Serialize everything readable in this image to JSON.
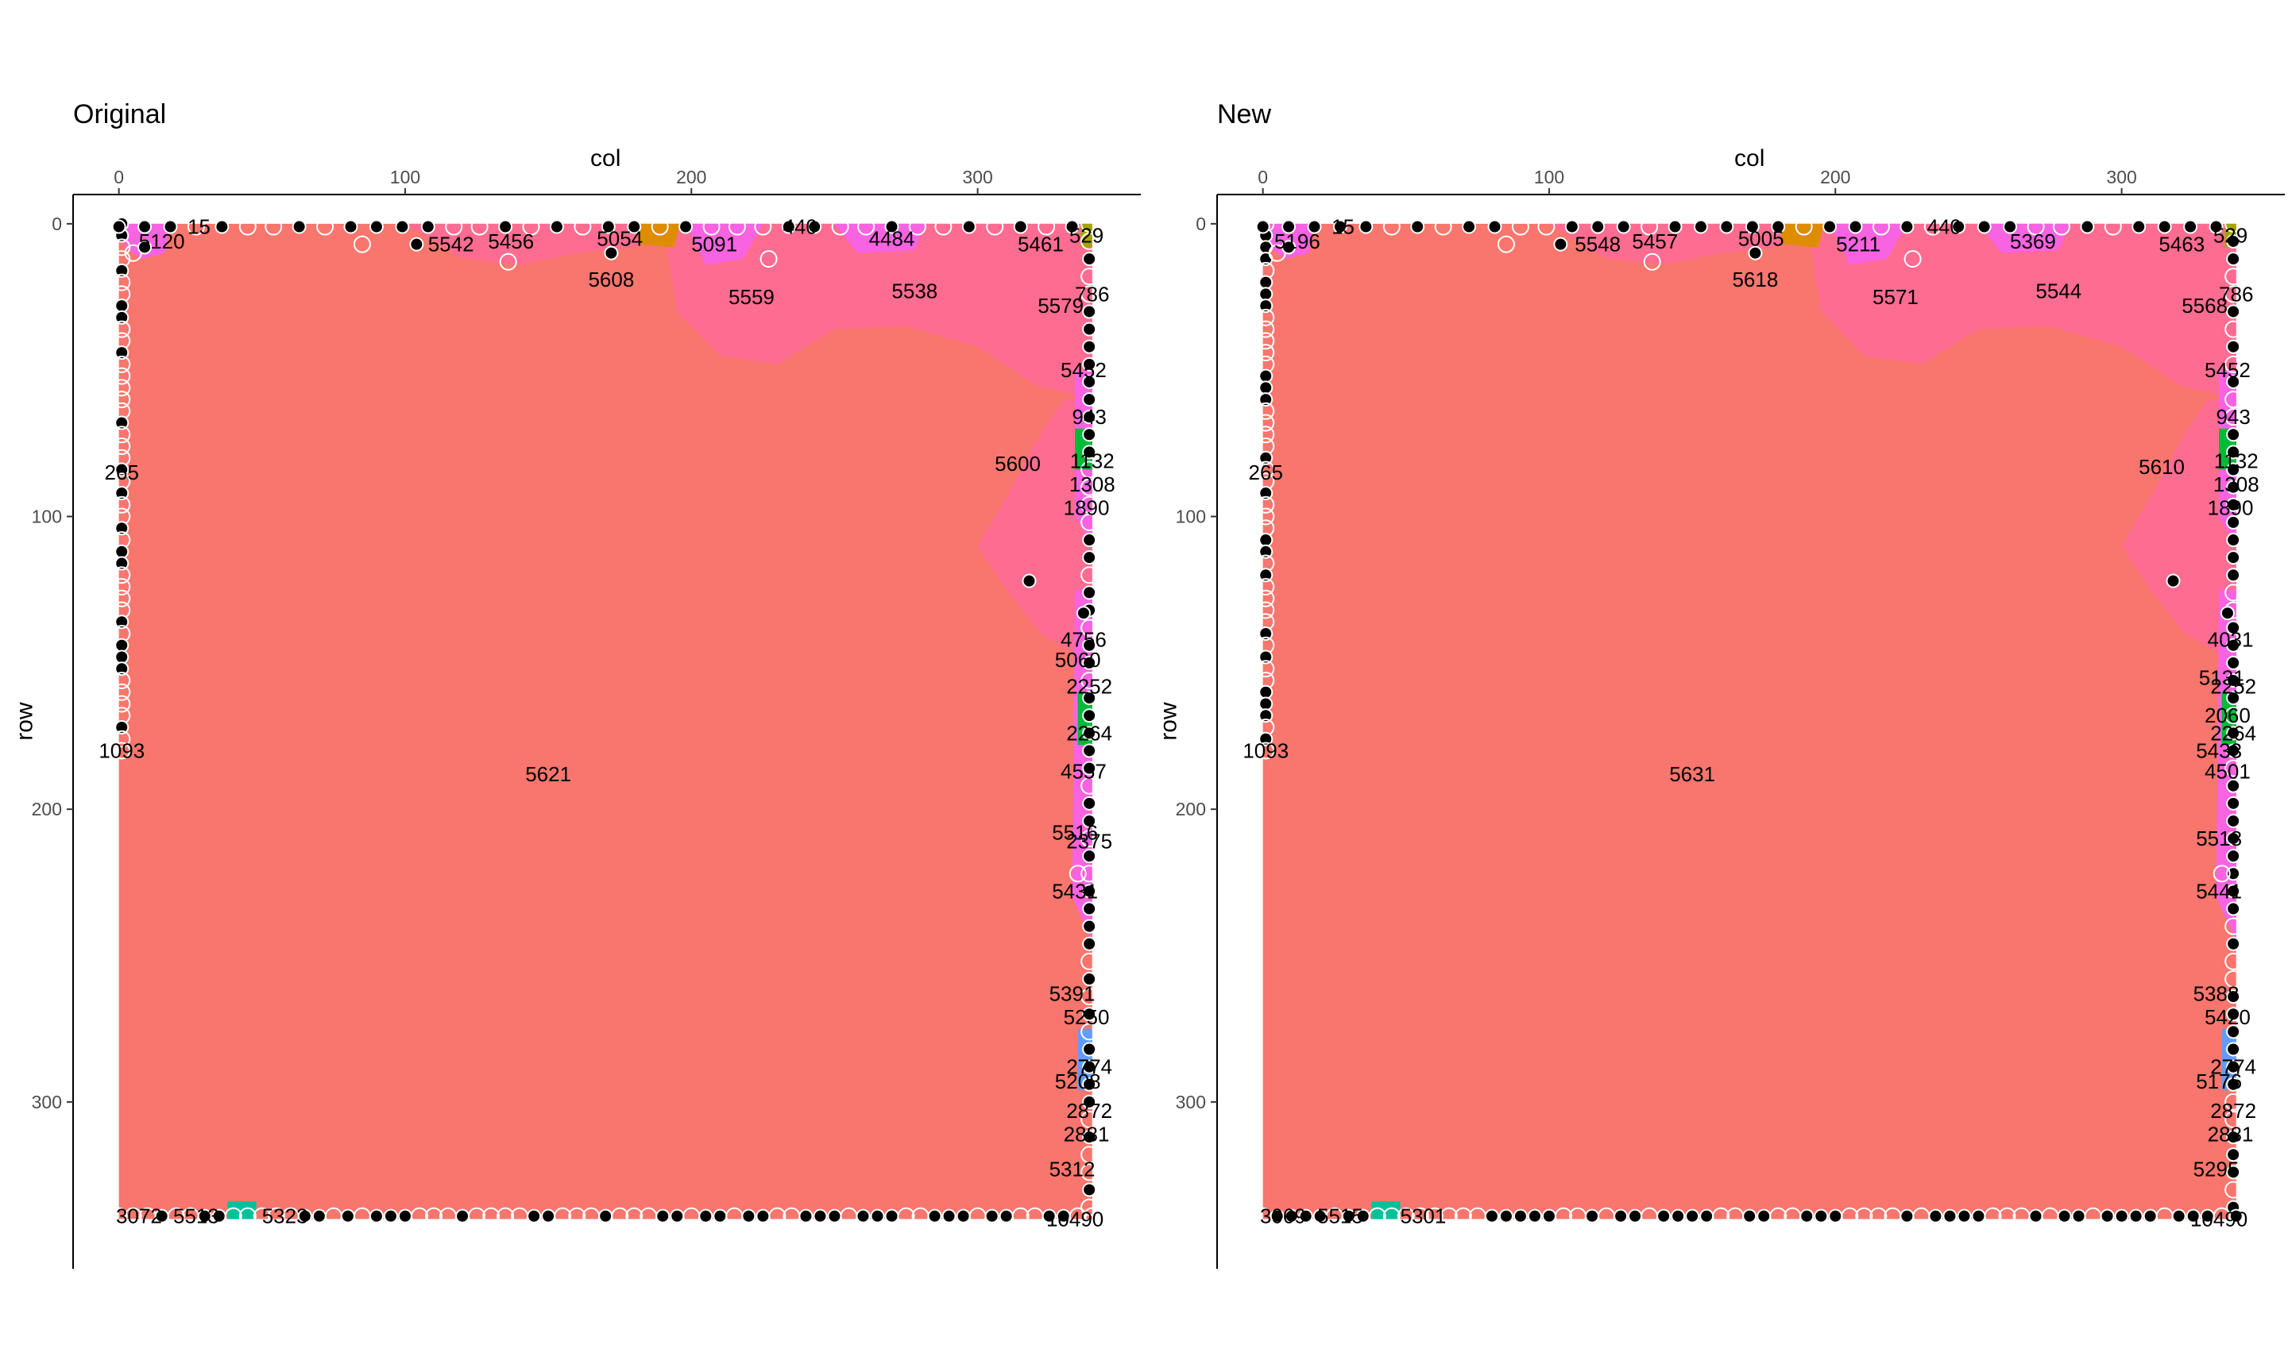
{
  "chart_data": [
    {
      "type": "scatter",
      "title": "Original",
      "xlabel": "col",
      "ylabel": "row",
      "xlim": [
        -16,
        357
      ],
      "ylim": [
        -10,
        357
      ],
      "x_ticks": [
        0,
        100,
        200,
        300
      ],
      "y_ticks": [
        0,
        100,
        200,
        300
      ],
      "x_axis_position": "top",
      "y_axis_reversed": true,
      "grid": false,
      "background_region_color": "#F8766D",
      "region_colors": [
        "#FF6C91",
        "#F763E0",
        "#00BA38",
        "#619CFF",
        "#DE8C00",
        "#00C19A",
        "#A3A500"
      ],
      "main_region": {
        "label": "5621",
        "col": 150,
        "row": 188
      },
      "labels": [
        {
          "text": "5120",
          "col": 15,
          "row": 6
        },
        {
          "text": "15",
          "col": 28,
          "row": 1
        },
        {
          "text": "5542",
          "col": 116,
          "row": 7
        },
        {
          "text": "5456",
          "col": 137,
          "row": 6
        },
        {
          "text": "5054",
          "col": 175,
          "row": 5
        },
        {
          "text": "5091",
          "col": 208,
          "row": 7
        },
        {
          "text": "440",
          "col": 238,
          "row": 1
        },
        {
          "text": "4484",
          "col": 270,
          "row": 5
        },
        {
          "text": "5461",
          "col": 322,
          "row": 7
        },
        {
          "text": "529",
          "col": 338,
          "row": 4
        },
        {
          "text": "5608",
          "col": 172,
          "row": 19
        },
        {
          "text": "5559",
          "col": 221,
          "row": 25
        },
        {
          "text": "5538",
          "col": 278,
          "row": 23
        },
        {
          "text": "5579",
          "col": 329,
          "row": 28
        },
        {
          "text": "786",
          "col": 340,
          "row": 24
        },
        {
          "text": "5452",
          "col": 337,
          "row": 50
        },
        {
          "text": "943",
          "col": 339,
          "row": 66
        },
        {
          "text": "5600",
          "col": 314,
          "row": 82
        },
        {
          "text": "1132",
          "col": 340,
          "row": 81
        },
        {
          "text": "1308",
          "col": 340,
          "row": 89
        },
        {
          "text": "1890",
          "col": 338,
          "row": 97
        },
        {
          "text": "4756",
          "col": 337,
          "row": 142
        },
        {
          "text": "5060",
          "col": 335,
          "row": 149
        },
        {
          "text": "2252",
          "col": 339,
          "row": 158
        },
        {
          "text": "2264",
          "col": 339,
          "row": 174
        },
        {
          "text": "4557",
          "col": 337,
          "row": 187
        },
        {
          "text": "5516",
          "col": 334,
          "row": 208
        },
        {
          "text": "2375",
          "col": 339,
          "row": 211
        },
        {
          "text": "5431",
          "col": 334,
          "row": 228
        },
        {
          "text": "5391",
          "col": 333,
          "row": 263
        },
        {
          "text": "5250",
          "col": 338,
          "row": 271
        },
        {
          "text": "2774",
          "col": 339,
          "row": 288
        },
        {
          "text": "5208",
          "col": 335,
          "row": 293
        },
        {
          "text": "2872",
          "col": 339,
          "row": 303
        },
        {
          "text": "2881",
          "col": 338,
          "row": 311
        },
        {
          "text": "5312",
          "col": 333,
          "row": 323
        },
        {
          "text": "1093",
          "col": 1,
          "row": 180
        },
        {
          "text": "265",
          "col": 1,
          "row": 85
        },
        {
          "text": "3072",
          "col": 7,
          "row": 339
        },
        {
          "text": "5513",
          "col": 27,
          "row": 339
        },
        {
          "text": "5323",
          "col": 58,
          "row": 339
        },
        {
          "text": "10490",
          "col": 334,
          "row": 340
        }
      ]
    },
    {
      "type": "scatter",
      "title": "New",
      "xlabel": "col",
      "ylabel": "row",
      "xlim": [
        -16,
        357
      ],
      "ylim": [
        -10,
        357
      ],
      "x_ticks": [
        0,
        100,
        200,
        300
      ],
      "y_ticks": [
        0,
        100,
        200,
        300
      ],
      "x_axis_position": "top",
      "y_axis_reversed": true,
      "grid": false,
      "background_region_color": "#F8766D",
      "region_colors": [
        "#FF6C91",
        "#F763E0",
        "#00BA38",
        "#619CFF",
        "#DE8C00",
        "#00C19A",
        "#A3A500"
      ],
      "main_region": {
        "label": "5631",
        "col": 150,
        "row": 188
      },
      "labels": [
        {
          "text": "5196",
          "col": 12,
          "row": 6
        },
        {
          "text": "15",
          "col": 28,
          "row": 1
        },
        {
          "text": "5548",
          "col": 117,
          "row": 7
        },
        {
          "text": "5457",
          "col": 137,
          "row": 6
        },
        {
          "text": "5005",
          "col": 174,
          "row": 5
        },
        {
          "text": "5211",
          "col": 208,
          "row": 7
        },
        {
          "text": "440",
          "col": 238,
          "row": 1
        },
        {
          "text": "5369",
          "col": 269,
          "row": 6
        },
        {
          "text": "5463",
          "col": 321,
          "row": 7
        },
        {
          "text": "529",
          "col": 338,
          "row": 4
        },
        {
          "text": "5618",
          "col": 172,
          "row": 19
        },
        {
          "text": "5571",
          "col": 221,
          "row": 25
        },
        {
          "text": "5544",
          "col": 278,
          "row": 23
        },
        {
          "text": "5568",
          "col": 329,
          "row": 28
        },
        {
          "text": "786",
          "col": 340,
          "row": 24
        },
        {
          "text": "5452",
          "col": 337,
          "row": 50
        },
        {
          "text": "943",
          "col": 339,
          "row": 66
        },
        {
          "text": "5610",
          "col": 314,
          "row": 83
        },
        {
          "text": "1132",
          "col": 340,
          "row": 81
        },
        {
          "text": "1308",
          "col": 340,
          "row": 89
        },
        {
          "text": "1890",
          "col": 338,
          "row": 97
        },
        {
          "text": "4031",
          "col": 338,
          "row": 142
        },
        {
          "text": "5131",
          "col": 335,
          "row": 155
        },
        {
          "text": "2252",
          "col": 339,
          "row": 158
        },
        {
          "text": "2060",
          "col": 337,
          "row": 168
        },
        {
          "text": "2264",
          "col": 339,
          "row": 174
        },
        {
          "text": "5433",
          "col": 334,
          "row": 180
        },
        {
          "text": "4501",
          "col": 337,
          "row": 187
        },
        {
          "text": "5518",
          "col": 334,
          "row": 210
        },
        {
          "text": "5441",
          "col": 334,
          "row": 228
        },
        {
          "text": "5388",
          "col": 333,
          "row": 263
        },
        {
          "text": "5420",
          "col": 337,
          "row": 271
        },
        {
          "text": "2774",
          "col": 339,
          "row": 288
        },
        {
          "text": "5176",
          "col": 334,
          "row": 293
        },
        {
          "text": "2872",
          "col": 339,
          "row": 303
        },
        {
          "text": "2881",
          "col": 338,
          "row": 311
        },
        {
          "text": "5295",
          "col": 333,
          "row": 323
        },
        {
          "text": "1093",
          "col": 1,
          "row": 180
        },
        {
          "text": "265",
          "col": 1,
          "row": 85
        },
        {
          "text": "3069",
          "col": 7,
          "row": 339
        },
        {
          "text": "5515",
          "col": 27,
          "row": 339
        },
        {
          "text": "5301",
          "col": 56,
          "row": 339
        },
        {
          "text": "10490",
          "col": 334,
          "row": 340
        }
      ]
    }
  ]
}
